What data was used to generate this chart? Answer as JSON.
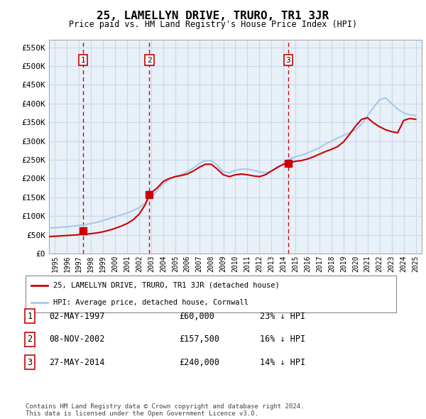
{
  "title": "25, LAMELLYN DRIVE, TRURO, TR1 3JR",
  "subtitle": "Price paid vs. HM Land Registry's House Price Index (HPI)",
  "legend_line1": "25, LAMELLYN DRIVE, TRURO, TR1 3JR (detached house)",
  "legend_line2": "HPI: Average price, detached house, Cornwall",
  "footer1": "Contains HM Land Registry data © Crown copyright and database right 2024.",
  "footer2": "This data is licensed under the Open Government Licence v3.0.",
  "transactions": [
    {
      "num": 1,
      "date": "02-MAY-1997",
      "price": 60000,
      "pct": "23% ↓ HPI",
      "year": 1997.33
    },
    {
      "num": 2,
      "date": "08-NOV-2002",
      "price": 157500,
      "pct": "16% ↓ HPI",
      "year": 2002.85
    },
    {
      "num": 3,
      "date": "27-MAY-2014",
      "price": 240000,
      "pct": "14% ↓ HPI",
      "year": 2014.4
    }
  ],
  "hpi_line_color": "#a8c8e8",
  "price_line_color": "#cc0000",
  "dashed_line_color": "#cc0000",
  "marker_color": "#cc0000",
  "grid_color": "#c8d8e8",
  "bg_color": "#e8f0f8",
  "ylim": [
    0,
    570000
  ],
  "yticks": [
    0,
    50000,
    100000,
    150000,
    200000,
    250000,
    300000,
    350000,
    400000,
    450000,
    500000,
    550000
  ],
  "xlim_start": 1994.5,
  "xlim_end": 2025.5,
  "hpi_years": [
    1994.5,
    1995,
    1995.5,
    1996,
    1996.5,
    1997,
    1997.5,
    1998,
    1998.5,
    1999,
    1999.5,
    2000,
    2000.5,
    2001,
    2001.5,
    2002,
    2002.5,
    2003,
    2003.5,
    2004,
    2004.5,
    2005,
    2005.5,
    2006,
    2006.5,
    2007,
    2007.5,
    2008,
    2008.5,
    2009,
    2009.5,
    2010,
    2010.5,
    2011,
    2011.5,
    2012,
    2012.5,
    2013,
    2013.5,
    2014,
    2014.5,
    2015,
    2015.5,
    2016,
    2016.5,
    2017,
    2017.5,
    2018,
    2018.5,
    2019,
    2019.5,
    2020,
    2020.5,
    2021,
    2021.5,
    2022,
    2022.5,
    2023,
    2023.5,
    2024,
    2024.5,
    2025
  ],
  "hpi_values": [
    68000,
    69000,
    70000,
    71000,
    73000,
    75000,
    77000,
    80000,
    83000,
    88000,
    93000,
    98000,
    103000,
    108000,
    115000,
    122000,
    135000,
    150000,
    168000,
    185000,
    198000,
    205000,
    210000,
    218000,
    228000,
    240000,
    248000,
    248000,
    235000,
    218000,
    215000,
    222000,
    225000,
    225000,
    222000,
    218000,
    215000,
    220000,
    228000,
    240000,
    252000,
    258000,
    262000,
    268000,
    275000,
    282000,
    292000,
    300000,
    308000,
    315000,
    322000,
    330000,
    345000,
    368000,
    390000,
    410000,
    415000,
    400000,
    385000,
    375000,
    370000,
    368000
  ],
  "price_years": [
    1994.5,
    1995,
    1995.5,
    1996,
    1996.5,
    1997,
    1997.33,
    1997.5,
    1998,
    1998.5,
    1999,
    1999.5,
    2000,
    2000.5,
    2001,
    2001.5,
    2002,
    2002.5,
    2002.85,
    2003,
    2003.5,
    2004,
    2004.5,
    2005,
    2005.5,
    2006,
    2006.5,
    2007,
    2007.5,
    2008,
    2008.5,
    2009,
    2009.5,
    2010,
    2010.5,
    2011,
    2011.5,
    2012,
    2012.5,
    2013,
    2013.5,
    2014,
    2014.4,
    2014.5,
    2015,
    2015.5,
    2016,
    2016.5,
    2017,
    2017.5,
    2018,
    2018.5,
    2019,
    2019.5,
    2020,
    2020.5,
    2021,
    2021.5,
    2022,
    2022.5,
    2023,
    2023.5,
    2024,
    2024.5,
    2025
  ],
  "price_values": [
    45000,
    46000,
    47000,
    48000,
    49000,
    50000,
    60000,
    51000,
    53000,
    55000,
    58000,
    62000,
    67000,
    73000,
    80000,
    90000,
    105000,
    130000,
    157500,
    162000,
    175000,
    192000,
    200000,
    205000,
    208000,
    212000,
    220000,
    230000,
    238000,
    238000,
    225000,
    210000,
    205000,
    210000,
    212000,
    210000,
    207000,
    205000,
    210000,
    220000,
    230000,
    238000,
    240000,
    242000,
    246000,
    248000,
    252000,
    258000,
    265000,
    272000,
    278000,
    285000,
    298000,
    318000,
    340000,
    358000,
    362000,
    348000,
    338000,
    330000,
    325000,
    322000,
    355000,
    360000,
    358000
  ]
}
